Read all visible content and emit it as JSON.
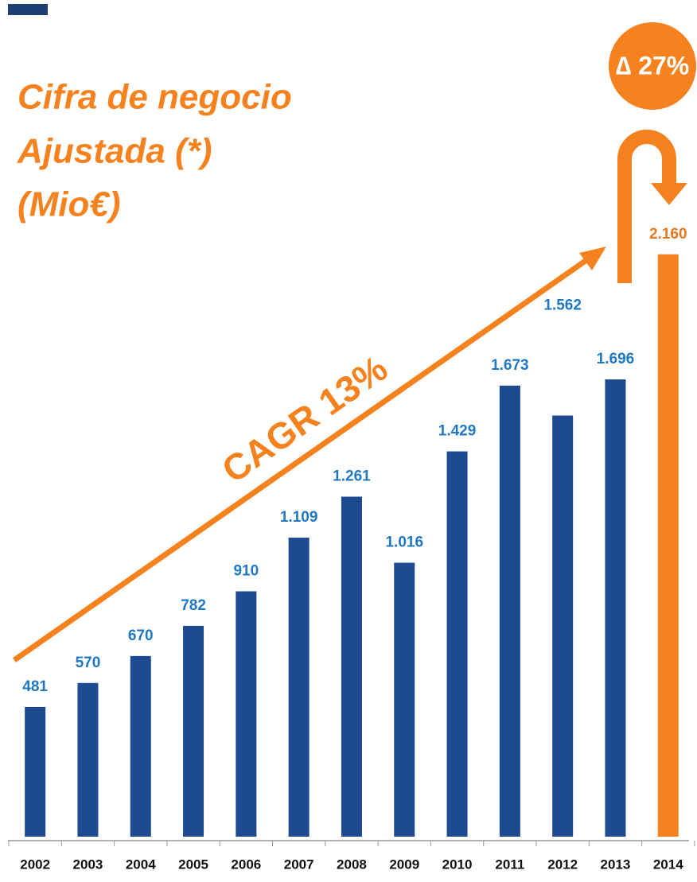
{
  "chart_data": {
    "type": "bar",
    "title_lines": [
      "Cifra de negocio",
      "Ajustada (*)",
      "(Mio€)"
    ],
    "annotations": {
      "cagr": "CAGR 13%",
      "delta": "∆ 27%"
    },
    "categories": [
      "2002",
      "2003",
      "2004",
      "2005",
      "2006",
      "2007",
      "2008",
      "2009",
      "2010",
      "2011",
      "2012",
      "2013",
      "2014"
    ],
    "values": [
      481,
      570,
      670,
      782,
      910,
      1109,
      1261,
      1016,
      1429,
      1673,
      1562,
      1696,
      2160
    ],
    "value_labels": [
      "481",
      "570",
      "670",
      "782",
      "910",
      "1.109",
      "1.261",
      "1.016",
      "1.429",
      "1.673",
      "1.562",
      "1.696",
      "2.160"
    ],
    "colors": [
      "#1d4a91",
      "#1d4a91",
      "#1d4a91",
      "#1d4a91",
      "#1d4a91",
      "#1d4a91",
      "#1d4a91",
      "#1d4a91",
      "#1d4a91",
      "#1d4a91",
      "#1d4a91",
      "#1d4a91",
      "#f5821f"
    ],
    "label_colors": [
      "#1f78c1",
      "#1f78c1",
      "#1f78c1",
      "#1f78c1",
      "#1f78c1",
      "#1f78c1",
      "#1f78c1",
      "#1f78c1",
      "#1f78c1",
      "#1f78c1",
      "#1f78c1",
      "#1f78c1",
      "#e87722"
    ]
  }
}
